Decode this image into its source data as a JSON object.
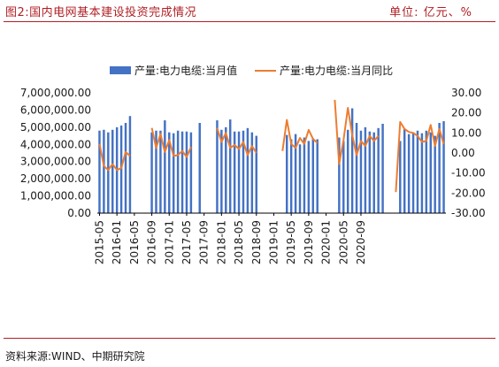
{
  "header": {
    "title": "图2:国内电网基本建设投资完成情况",
    "unit": "单位: 亿元、%"
  },
  "footer": {
    "source": "资料来源:WIND、中期研究院"
  },
  "colors": {
    "bar": "#4472c4",
    "line": "#ed7d31",
    "accent": "#b11f24"
  },
  "chart_data": {
    "type": "bar",
    "title": "",
    "legend_position": "top",
    "series": [
      {
        "name": "产量:电力电缆:当月值",
        "type": "bar",
        "axis": "left",
        "values": [
          4800000,
          4850000,
          4700000,
          4850000,
          5000000,
          5100000,
          5250000,
          5650000,
          null,
          null,
          null,
          null,
          4700000,
          4800000,
          4800000,
          5400000,
          4700000,
          4650000,
          4800000,
          4750000,
          4750000,
          4700000,
          null,
          5250000,
          null,
          null,
          null,
          5400000,
          4850000,
          5000000,
          5450000,
          4750000,
          4750000,
          4800000,
          4950000,
          4700000,
          4500000,
          null,
          null,
          null,
          null,
          null,
          null,
          4550000,
          4300000,
          4600000,
          4000000,
          4400000,
          4200000,
          4350000,
          4300000,
          null,
          null,
          null,
          null,
          4400000,
          4200000,
          4850000,
          6100000,
          5250000,
          4800000,
          5000000,
          4750000,
          4700000,
          4950000,
          5200000,
          null,
          null,
          null,
          4200000,
          4900000,
          4600000,
          4700000,
          4800000,
          4650000,
          4800000,
          4700000,
          4500000,
          5250000,
          5350000
        ]
      },
      {
        "name": "产量:电力电缆:当月同比",
        "type": "line",
        "axis": "right",
        "values": [
          4.5,
          -6.5,
          -8.5,
          -5.5,
          -8.5,
          -7.5,
          0.5,
          -1.5,
          null,
          null,
          null,
          null,
          12.5,
          2.5,
          9.5,
          0.5,
          6.5,
          -1.5,
          -1.0,
          1.0,
          -2.0,
          3.0,
          null,
          -6.5,
          null,
          null,
          null,
          12.5,
          5.5,
          10.0,
          2.5,
          4.0,
          2.0,
          5.5,
          -1.0,
          3.5,
          0.0,
          null,
          null,
          null,
          null,
          null,
          1.0,
          16.5,
          4.5,
          2.5,
          7.5,
          4.5,
          11.5,
          7.0,
          5.0,
          null,
          null,
          null,
          26.5,
          -5.5,
          6.5,
          22.5,
          9.0,
          -1.0,
          6.0,
          3.5,
          8.5,
          6.0,
          8.5,
          null,
          null,
          null,
          -19.5,
          15.5,
          12.0,
          10.5,
          10.0,
          8.5,
          5.5,
          6.0,
          14.0,
          3.5,
          12.0,
          4.5
        ]
      }
    ],
    "x_tick_labels": [
      "2015-05",
      "2016-01",
      "2016-05",
      "2016-09",
      "2017-01",
      "2017-05",
      "2017-09",
      "2018-01",
      "2018-05",
      "2018-09",
      "2019-01",
      "2019-05",
      "2019-09",
      "2020-01",
      "2020-05",
      "2020-09"
    ],
    "y_left": {
      "range": [
        0,
        7000000
      ],
      "tick_labels": [
        "0.00",
        "1,000,000.00",
        "2,000,000.00",
        "3,000,000.00",
        "4,000,000.00",
        "5,000,000.00",
        "6,000,000.00",
        "7,000,000.00"
      ]
    },
    "y_right": {
      "range": [
        -30,
        30
      ],
      "tick_labels": [
        "-30.00",
        "-20.00",
        "-10.00",
        "0.00",
        "10.00",
        "20.00",
        "30.00"
      ]
    }
  }
}
